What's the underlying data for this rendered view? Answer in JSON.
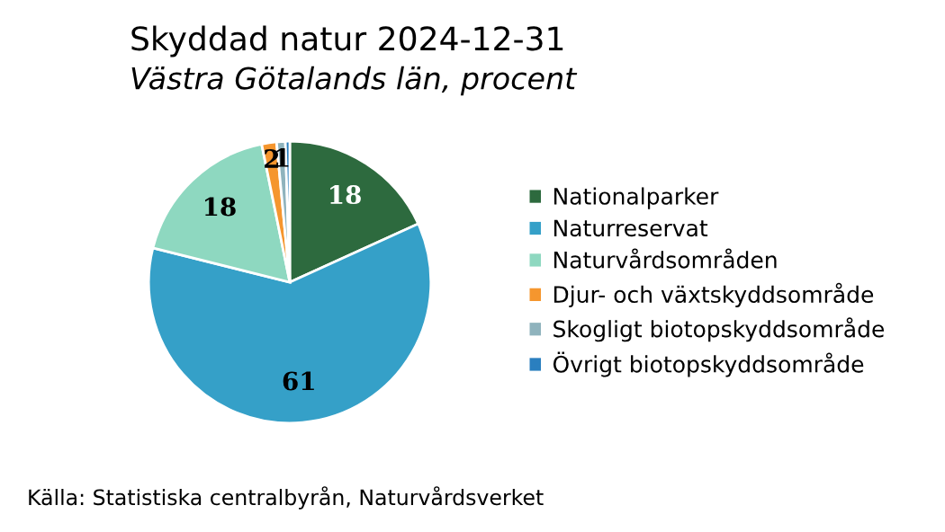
{
  "chart_data": {
    "type": "pie",
    "title": "Skyddad natur 2024-12-31",
    "subtitle": "Västra Götalands län, procent",
    "categories": [
      "Nationalparker",
      "Naturreservat",
      "Naturvårdsområden",
      "Djur- och växtskyddsområde",
      "Skogligt biotopskyddsområde",
      "Övrigt biotopskyddsområde"
    ],
    "values": [
      18.2,
      60.7,
      17.9,
      1.7,
      1.0,
      0.5
    ],
    "value_labels": [
      "18",
      "61",
      "18",
      "2",
      "1",
      null
    ],
    "colors": [
      "#2d6a3e",
      "#35a0c8",
      "#8ed8c0",
      "#f5962e",
      "#8fb3bd",
      "#2a7fbf"
    ],
    "legend": "right",
    "annotations": [
      "Källa: Statistiska centralbyrån, Naturvårdsverket"
    ]
  }
}
